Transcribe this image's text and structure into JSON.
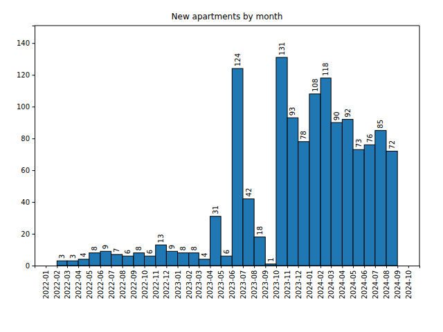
{
  "chart_data": {
    "type": "histogram",
    "title": "New apartments by month",
    "bins": [
      "2022-02",
      "2022-03",
      "2022-04",
      "2022-05",
      "2022-06",
      "2022-07",
      "2022-08",
      "2022-09",
      "2022-10",
      "2022-11",
      "2022-12",
      "2023-01",
      "2023-02",
      "2023-03",
      "2023-04",
      "2023-05",
      "2023-06",
      "2023-07",
      "2023-08",
      "2023-09",
      "2023-10",
      "2023-11",
      "2023-12",
      "2024-01",
      "2024-02",
      "2024-03",
      "2024-04",
      "2024-05",
      "2024-06",
      "2024-07",
      "2024-08",
      "2024-09"
    ],
    "values": [
      3,
      3,
      4,
      8,
      9,
      7,
      6,
      8,
      6,
      13,
      9,
      8,
      8,
      4,
      31,
      6,
      124,
      42,
      18,
      1,
      131,
      93,
      78,
      108,
      118,
      90,
      92,
      73,
      76,
      85,
      72
    ],
    "color": "#1f77b4",
    "xlim": [
      "2021-12",
      "2024-11"
    ],
    "xticks": [
      "2022-01",
      "2022-02",
      "2022-03",
      "2022-04",
      "2022-05",
      "2022-06",
      "2022-07",
      "2022-08",
      "2022-09",
      "2022-10",
      "2022-11",
      "2022-12",
      "2023-01",
      "2023-02",
      "2023-03",
      "2023-04",
      "2023-05",
      "2023-06",
      "2023-07",
      "2023-08",
      "2023-09",
      "2023-10",
      "2023-11",
      "2023-12",
      "2024-01",
      "2024-02",
      "2024-03",
      "2024-04",
      "2024-05",
      "2024-06",
      "2024-07",
      "2024-08",
      "2024-09",
      "2024-10"
    ],
    "ylim": [
      0,
      151
    ],
    "yticks": [
      0,
      20,
      40,
      60,
      80,
      100,
      120,
      140
    ],
    "data_labels": true,
    "grid": false
  }
}
